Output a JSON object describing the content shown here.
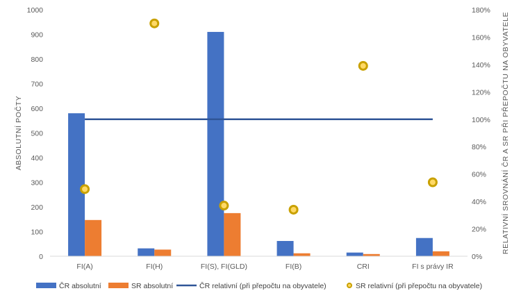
{
  "chart_data": {
    "type": "bar",
    "categories": [
      "FI(A)",
      "FI(H)",
      "FI(S), FI(GLD)",
      "FI(B)",
      "CRI",
      "FI s právy IR"
    ],
    "series": [
      {
        "name": "ČR absolutní",
        "kind": "bar",
        "axis": "left",
        "color": "#4472C4",
        "values": [
          580,
          32,
          910,
          62,
          15,
          74
        ]
      },
      {
        "name": "SR absolutní",
        "kind": "bar",
        "axis": "left",
        "color": "#ED7D31",
        "values": [
          147,
          27,
          175,
          12,
          9,
          20
        ]
      },
      {
        "name": "ČR relativní (při přepočtu na obyvatele)",
        "kind": "line",
        "axis": "right",
        "color": "#2F5597",
        "values": [
          1.0,
          1.0,
          1.0,
          1.0,
          1.0,
          1.0
        ]
      },
      {
        "name": "SR relativní (při přepočtu na obyvatele)",
        "kind": "marker",
        "axis": "right",
        "color": "#C9A100",
        "fill": "#FFD966",
        "values": [
          0.49,
          1.7,
          0.37,
          0.34,
          1.39,
          0.54
        ]
      }
    ],
    "ylabel": "ABSOLUTNÍ POČTY",
    "y2label": "RELATIVNÍ SROVNÁNÍ ČR A SR PŘI PŘEPOČTU NA OBYVATELE",
    "ylim": [
      0,
      1000
    ],
    "yticks": [
      0,
      100,
      200,
      300,
      400,
      500,
      600,
      700,
      800,
      900,
      1000
    ],
    "y2lim": [
      0,
      1.8
    ],
    "y2ticks": [
      "0%",
      "20%",
      "40%",
      "60%",
      "80%",
      "100%",
      "120%",
      "140%",
      "160%",
      "180%"
    ],
    "grid": false,
    "legend_position": "bottom"
  }
}
